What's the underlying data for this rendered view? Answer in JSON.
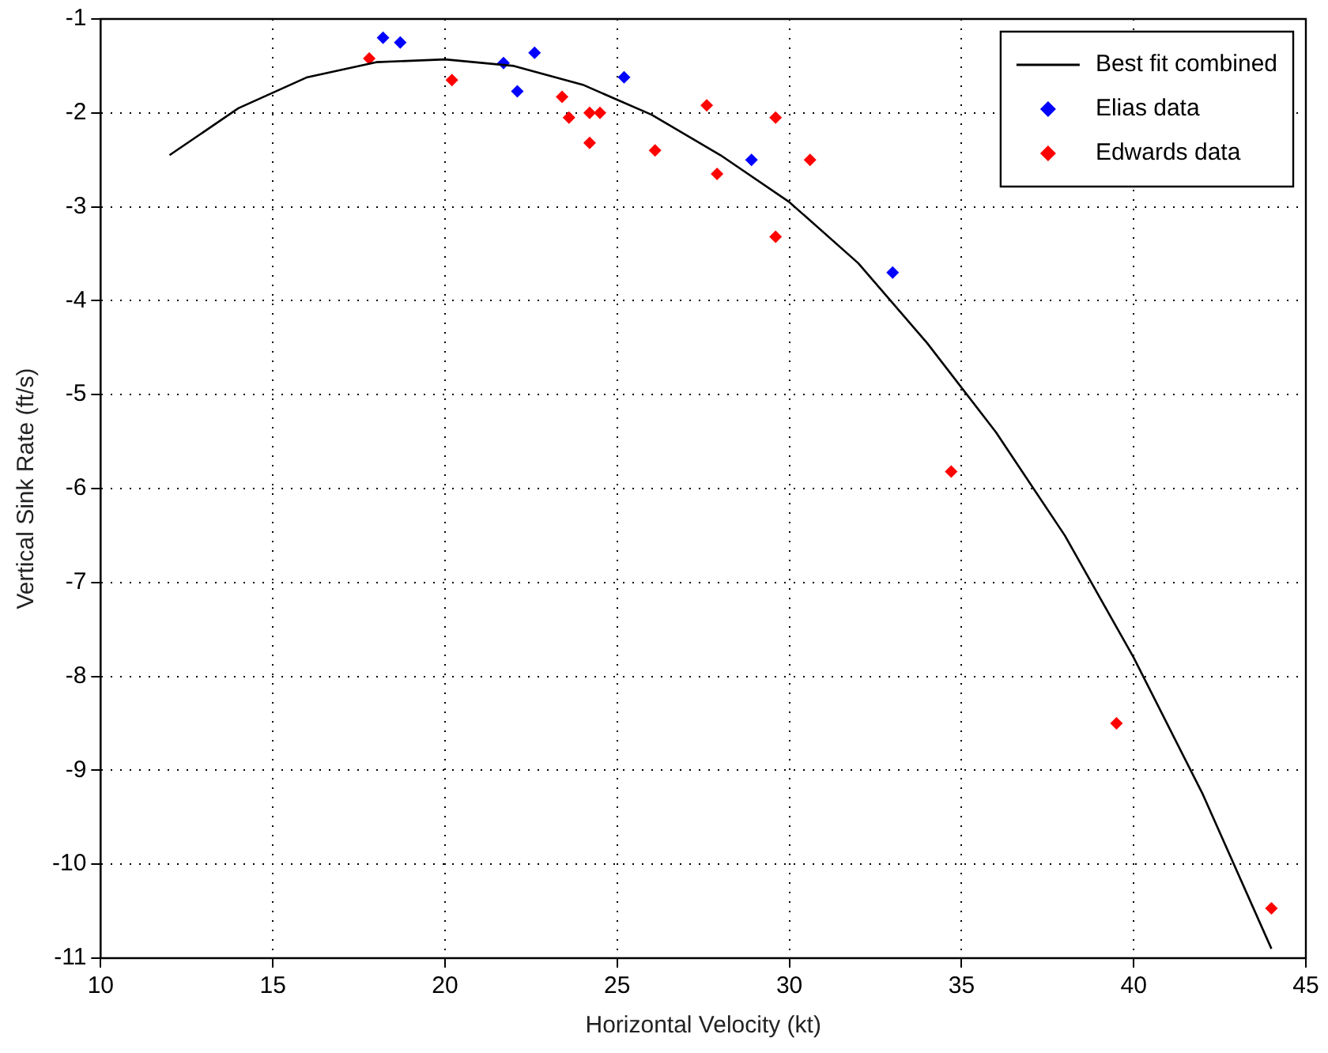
{
  "chart_data": {
    "type": "scatter",
    "xlabel": "Horizontal Velocity (kt)",
    "ylabel": "Vertical Sink Rate (ft/s)",
    "xlim": [
      10,
      45
    ],
    "xticks": [
      10,
      15,
      20,
      25,
      30,
      35,
      40,
      45
    ],
    "ylim": [
      -11,
      -1
    ],
    "yticks": [
      -11,
      -10,
      -9,
      -8,
      -7,
      -6,
      -5,
      -4,
      -3,
      -2,
      -1
    ],
    "grid": true,
    "legend": "top right",
    "marker": "diamond",
    "series": [
      {
        "name": "Best fit combined",
        "type": "line",
        "color": "#000000",
        "line_style": "solid",
        "marker": "none",
        "x": [
          12,
          14,
          16,
          18,
          20,
          22,
          24,
          26,
          28,
          30,
          32,
          34,
          36,
          38,
          40,
          42,
          44
        ],
        "values": [
          -2.45,
          -1.95,
          -1.62,
          -1.46,
          -1.43,
          -1.5,
          -1.7,
          -2.02,
          -2.45,
          -2.95,
          -3.6,
          -4.45,
          -5.4,
          -6.5,
          -7.8,
          -9.25,
          -10.9
        ]
      },
      {
        "name": "Elias data",
        "type": "scatter",
        "color": "#0000ff",
        "x": [
          18.2,
          18.7,
          21.7,
          22.1,
          22.6,
          25.2,
          28.9,
          33.0
        ],
        "values": [
          -1.2,
          -1.25,
          -1.47,
          -1.77,
          -1.36,
          -1.62,
          -2.5,
          -3.7
        ]
      },
      {
        "name": "Edwards data",
        "type": "scatter",
        "color": "#ff0000",
        "x": [
          17.8,
          20.2,
          23.4,
          23.6,
          24.2,
          24.5,
          24.2,
          26.1,
          27.6,
          27.9,
          29.6,
          30.6,
          29.6,
          34.7,
          39.5,
          44.0
        ],
        "values": [
          -1.42,
          -1.65,
          -1.83,
          -2.05,
          -2.0,
          -2.0,
          -2.32,
          -2.4,
          -1.92,
          -2.65,
          -2.05,
          -2.5,
          -3.32,
          -5.82,
          -8.5,
          -10.47
        ]
      }
    ]
  }
}
